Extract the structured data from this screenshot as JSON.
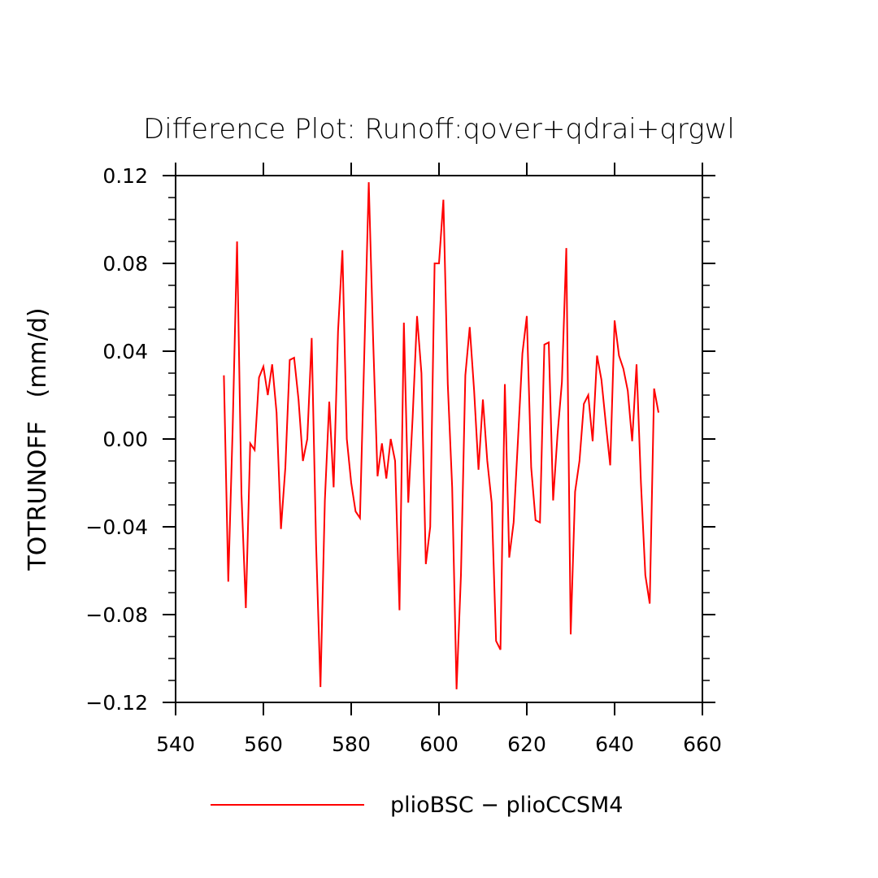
{
  "chart_data": {
    "type": "line",
    "title": "Difference Plot: Runoff:qover+qdrai+qrgwl",
    "xlabel": "",
    "ylabel": "TOTRUNOFF   (mm/d)",
    "xlim": [
      540,
      660
    ],
    "ylim": [
      -0.12,
      0.12
    ],
    "x_ticks": [
      540,
      560,
      580,
      600,
      620,
      640,
      660
    ],
    "x_tick_labels": [
      "540",
      "560",
      "580",
      "600",
      "620",
      "640",
      "660"
    ],
    "y_ticks": [
      -0.12,
      -0.08,
      -0.04,
      0.0,
      0.04,
      0.08,
      0.12
    ],
    "y_tick_labels": [
      "−0.12",
      "−0.08",
      "−0.04",
      "0.00",
      "0.04",
      "0.08",
      "0.12"
    ],
    "grid": false,
    "legend_position": "bottom",
    "series": [
      {
        "name": "plioBSC − plioCCSM4",
        "color": "#ff0000",
        "x": [
          551,
          552,
          553,
          554,
          555,
          556,
          557,
          558,
          559,
          560,
          561,
          562,
          563,
          564,
          565,
          566,
          567,
          568,
          569,
          570,
          571,
          572,
          573,
          574,
          575,
          576,
          577,
          578,
          579,
          580,
          581,
          582,
          583,
          584,
          585,
          586,
          587,
          588,
          589,
          590,
          591,
          592,
          593,
          594,
          595,
          596,
          597,
          598,
          599,
          600,
          601,
          602,
          603,
          604,
          605,
          606,
          607,
          608,
          609,
          610,
          611,
          612,
          613,
          614,
          615,
          616,
          617,
          618,
          619,
          620,
          621,
          622,
          623,
          624,
          625,
          626,
          627,
          628,
          629,
          630,
          631,
          632,
          633,
          634,
          635,
          636,
          637,
          638,
          639,
          640,
          641,
          642,
          643,
          644,
          645,
          646,
          647,
          648,
          649,
          650
        ],
        "y": [
          0.029,
          -0.065,
          0.005,
          0.09,
          -0.025,
          -0.077,
          -0.002,
          -0.005,
          0.028,
          0.033,
          0.02,
          0.034,
          0.012,
          -0.041,
          -0.013,
          0.036,
          0.037,
          0.018,
          -0.01,
          0.0,
          0.046,
          -0.048,
          -0.113,
          -0.028,
          0.017,
          -0.022,
          0.049,
          0.086,
          0.0,
          -0.02,
          -0.033,
          -0.036,
          0.04,
          0.117,
          0.045,
          -0.017,
          -0.002,
          -0.018,
          -0.0,
          -0.01,
          -0.078,
          0.053,
          -0.029,
          0.01,
          0.056,
          0.03,
          -0.057,
          -0.04,
          0.08,
          0.08,
          0.109,
          0.025,
          -0.022,
          -0.114,
          -0.062,
          0.029,
          0.051,
          0.022,
          -0.014,
          0.018,
          -0.01,
          -0.029,
          -0.092,
          -0.096,
          0.025,
          -0.054,
          -0.038,
          0.0,
          0.039,
          0.056,
          -0.013,
          -0.037,
          -0.038,
          0.043,
          0.044,
          -0.028,
          0.002,
          0.026,
          0.087,
          -0.089,
          -0.024,
          -0.01,
          0.016,
          0.02,
          -0.001,
          0.038,
          0.027,
          0.007,
          -0.012,
          0.054,
          0.038,
          0.032,
          0.022,
          -0.001,
          0.034,
          -0.02,
          -0.062,
          -0.075,
          0.023,
          0.012
        ]
      }
    ]
  }
}
